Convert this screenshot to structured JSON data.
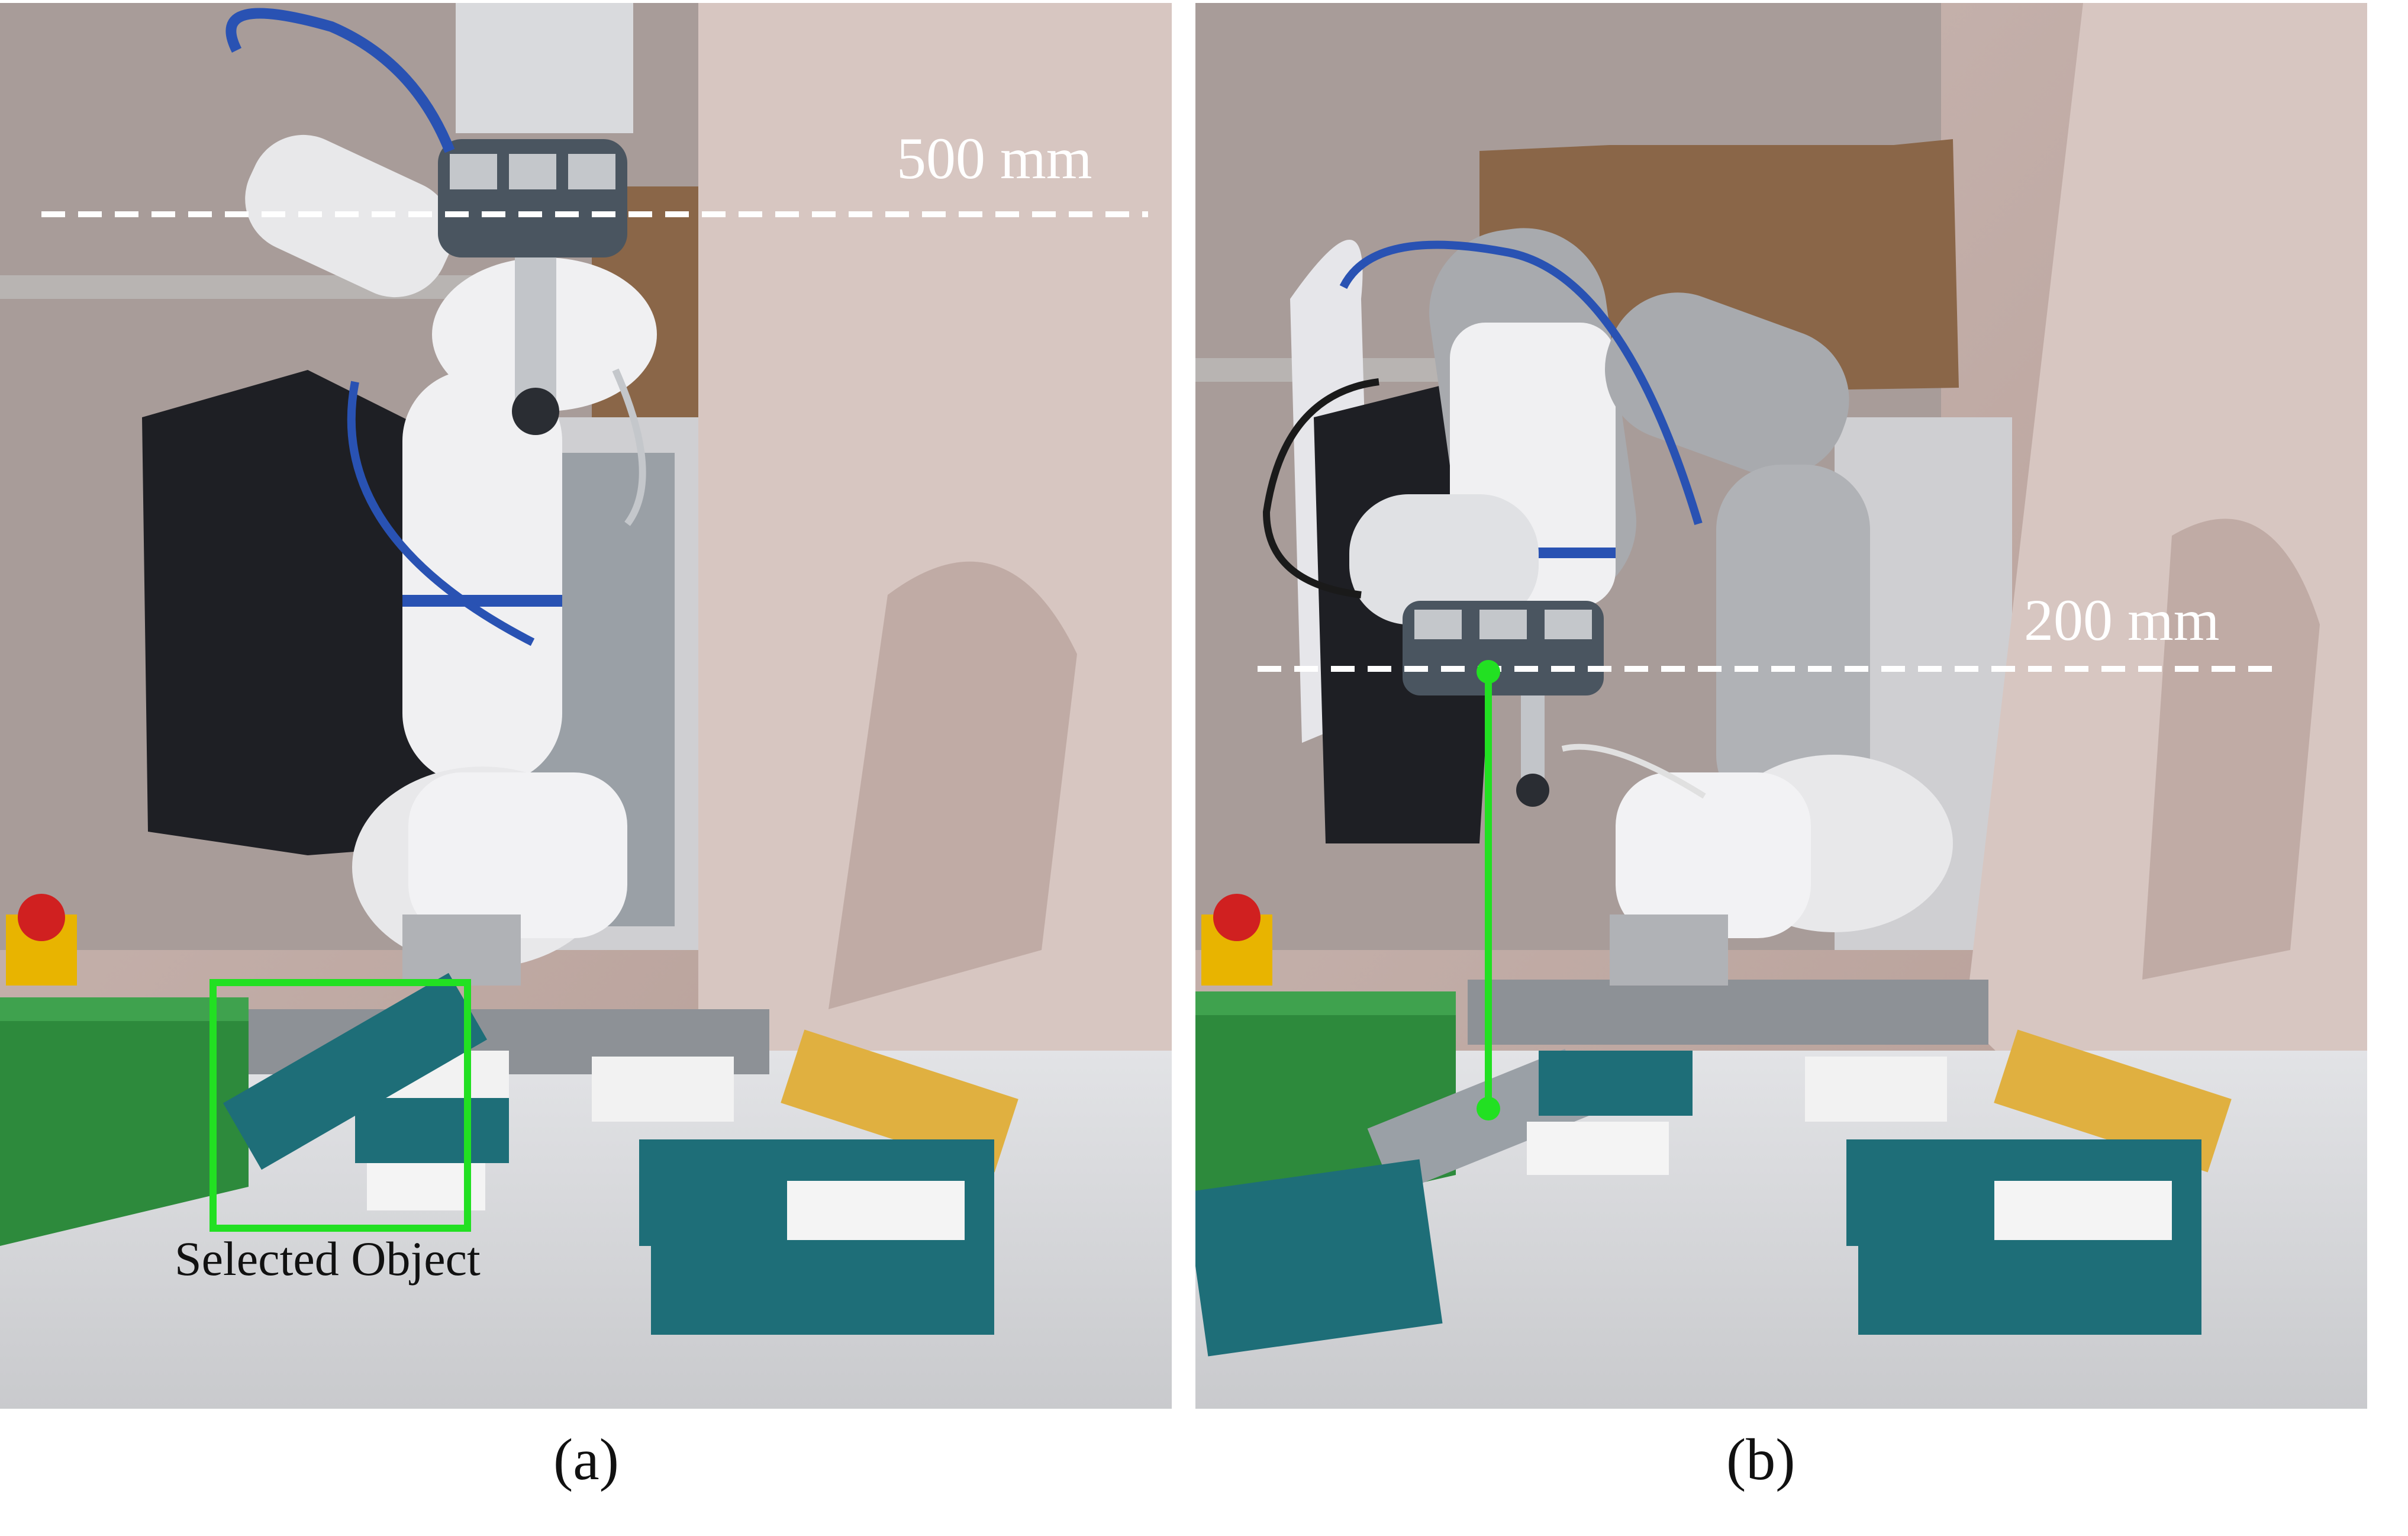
{
  "panels": [
    {
      "id": "a",
      "caption": "(a)",
      "height_label": "500 mm",
      "object_label": "Selected Object"
    },
    {
      "id": "b",
      "caption": "(b)",
      "height_label": "200 mm"
    }
  ],
  "colors": {
    "highlight": "#22e022",
    "dashed_line": "#ffffff",
    "wall": "#d8c4bf",
    "table": "#e9eaec",
    "box_teal": "#1e6e78",
    "bin_green": "#2d8a3c",
    "robot_white": "#f0f0f2",
    "robot_grey": "#a8aaae",
    "cable_blue": "#2952b3"
  },
  "icons": [
    "robot-arm",
    "gripper",
    "box",
    "bin",
    "jacket"
  ]
}
